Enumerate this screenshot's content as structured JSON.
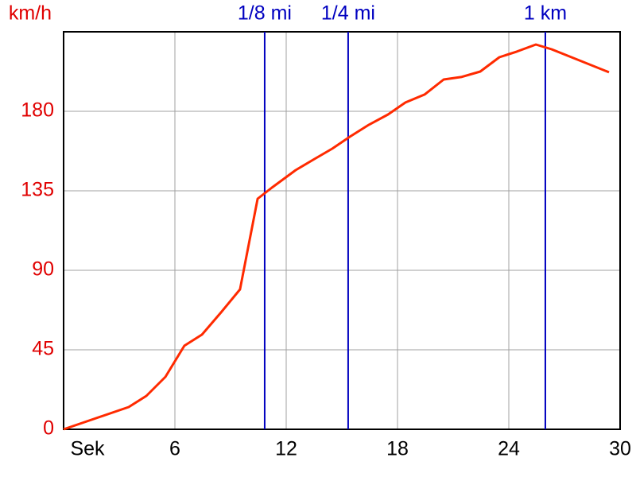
{
  "chart_data": {
    "type": "line",
    "xlabel": "Sek",
    "ylabel": "km/h",
    "x": [
      0,
      3.51,
      4.46,
      5.49,
      6.51,
      7.46,
      8.49,
      9.51,
      10.46,
      11.23,
      12.51,
      13.46,
      14.49,
      15.43,
      16.46,
      17.49,
      18.43,
      19.46,
      20.49,
      21.43,
      22.46,
      23.49,
      24.43,
      25.46,
      26.31,
      29.4
    ],
    "values": [
      0,
      12.6,
      18.9,
      29.7,
      47.3,
      53.6,
      66.2,
      79.2,
      130.5,
      136.8,
      146.7,
      152.6,
      158.9,
      165.6,
      172.4,
      178.2,
      185,
      189.5,
      198,
      199.4,
      202.5,
      210.6,
      213.8,
      217.8,
      215.1,
      202.1
    ],
    "color": "#ff2a00",
    "xlim": [
      0,
      30
    ],
    "ylim": [
      0,
      225
    ],
    "xticks": [
      6,
      12,
      18,
      24,
      30
    ],
    "yticks": [
      0,
      45,
      90,
      135,
      180
    ],
    "grid": true,
    "markers": [
      {
        "label": "1/8 mi",
        "x": 10.84
      },
      {
        "label": "1/4 mi",
        "x": 15.34
      },
      {
        "label": "1 km",
        "x": 25.97
      }
    ],
    "marker_color": "#0000c0"
  }
}
